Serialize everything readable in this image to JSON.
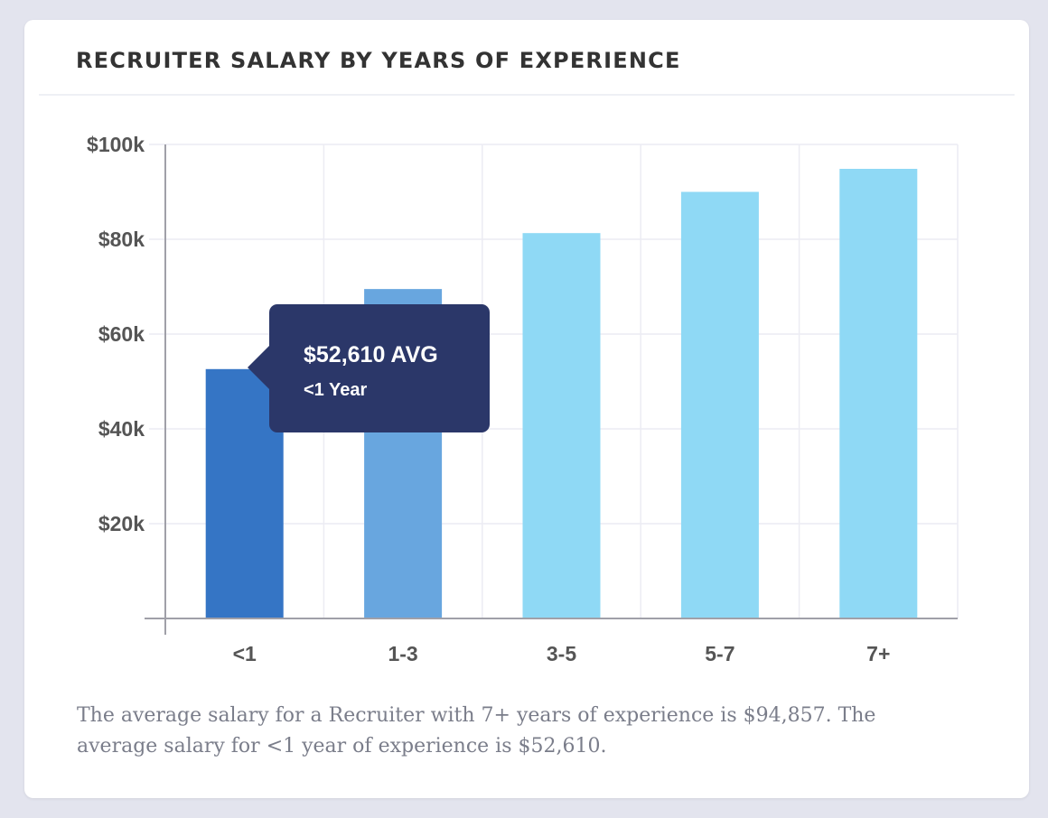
{
  "title": "RECRUITER SALARY BY YEARS OF EXPERIENCE",
  "tooltip": {
    "value": "$52,610 AVG",
    "label": "<1 Year"
  },
  "summary": "The average salary for a Recruiter with 7+ years of experience is $94,857. The average salary for <1 year of experience is $52,610.",
  "colors": {
    "background": "#e3e4ee",
    "card": "#ffffff",
    "bar_active": "#3575c5",
    "bar_mid": "#68a6df",
    "bar_light": "#8fd9f5",
    "tooltip": "#2b3769",
    "gridline": "#ececf3",
    "axis": "#a0a0a8",
    "tick_text": "#555555"
  },
  "chart_data": {
    "type": "bar",
    "title": "RECRUITER SALARY BY YEARS OF EXPERIENCE",
    "xlabel": "",
    "ylabel": "",
    "categories": [
      "<1",
      "1-3",
      "3-5",
      "5-7",
      "7+"
    ],
    "values": [
      52610,
      69500,
      81300,
      90000,
      94857
    ],
    "bar_colors": [
      "#3575c5",
      "#68a6df",
      "#8fd9f5",
      "#8fd9f5",
      "#8fd9f5"
    ],
    "ylim": [
      0,
      100000
    ],
    "yticks": [
      20000,
      40000,
      60000,
      80000,
      100000
    ],
    "ytick_labels": [
      "$20k",
      "$40k",
      "$60k",
      "$80k",
      "$100k"
    ],
    "grid": true,
    "legend": "none",
    "highlighted_category": "<1"
  }
}
